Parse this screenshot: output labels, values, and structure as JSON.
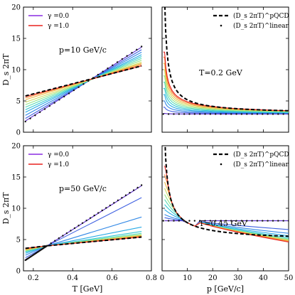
{
  "chart_data": [
    {
      "type": "line",
      "position": "top-left",
      "xlabel": "",
      "ylabel": "D_s 2πT",
      "xlim": [
        0.15,
        0.8
      ],
      "ylim": [
        0,
        20
      ],
      "xticks": [
        0.2,
        0.4,
        0.6,
        0.8
      ],
      "yticks": [
        0,
        5,
        10,
        15,
        20
      ],
      "xtick_labels": [
        "",
        "",
        "",
        ""
      ],
      "ytick_labels": [
        "0",
        "5",
        "10",
        "15",
        "20"
      ],
      "annotation": "p=10 GeV/c",
      "legend": [
        {
          "label": "γ =0.0",
          "color": "#8a2be2"
        },
        {
          "label": "γ =1.0",
          "color": "#e8221e"
        }
      ],
      "x": [
        0.16,
        0.75
      ],
      "series": [
        {
          "name": "γ =0.0",
          "gamma": 0.0,
          "values": [
            1.8,
            13.6
          ]
        },
        {
          "gamma": 0.1,
          "values": [
            2.2,
            13.2
          ]
        },
        {
          "gamma": 0.2,
          "values": [
            2.7,
            12.8
          ]
        },
        {
          "gamma": 0.3,
          "values": [
            3.2,
            12.4
          ]
        },
        {
          "gamma": 0.4,
          "values": [
            3.6,
            12.1
          ]
        },
        {
          "gamma": 0.5,
          "values": [
            4.0,
            11.8
          ]
        },
        {
          "gamma": 0.6,
          "values": [
            4.4,
            11.5
          ]
        },
        {
          "gamma": 0.7,
          "values": [
            4.8,
            11.2
          ]
        },
        {
          "gamma": 0.8,
          "values": [
            5.2,
            11.0
          ]
        },
        {
          "gamma": 0.9,
          "values": [
            5.5,
            10.8
          ]
        },
        {
          "name": "γ =1.0",
          "gamma": 1.0,
          "values": [
            5.7,
            10.6
          ]
        }
      ],
      "pQCD": {
        "x": [
          0.16,
          0.75
        ],
        "values": [
          5.8,
          10.6
        ]
      },
      "linear": {
        "x": [
          0.16,
          0.75
        ],
        "values": [
          1.7,
          13.7
        ]
      }
    },
    {
      "type": "line",
      "position": "top-right",
      "xlabel": "",
      "ylabel": "",
      "xlim": [
        0,
        50
      ],
      "ylim": [
        0,
        20
      ],
      "xticks": [
        0,
        10,
        20,
        30,
        40,
        50
      ],
      "yticks": [
        0,
        5,
        10,
        15,
        20
      ],
      "xtick_labels": [
        "",
        "",
        "",
        "",
        "",
        ""
      ],
      "ytick_labels": [
        "",
        "",
        "",
        "",
        ""
      ],
      "annotation": "T=0.2 GeV",
      "legend": [
        {
          "label": "(D_s 2πT)^pQCD",
          "style": "dashed"
        },
        {
          "label": "(D_s 2πT)^linear",
          "style": "dotted"
        }
      ],
      "p_grid": [
        1,
        1.5,
        2,
        2.5,
        3,
        4,
        5,
        6,
        8,
        10,
        12,
        15,
        20,
        25,
        30,
        35,
        40,
        45,
        50
      ],
      "pQCD_peak": 22,
      "baseline": 2.9,
      "series": [
        {
          "gamma": 0.0,
          "peak": 3.0
        },
        {
          "gamma": 0.1,
          "peak": 4.0
        },
        {
          "gamma": 0.2,
          "peak": 5.0
        },
        {
          "gamma": 0.3,
          "peak": 6.0
        },
        {
          "gamma": 0.4,
          "peak": 7.0
        },
        {
          "gamma": 0.5,
          "peak": 8.0
        },
        {
          "gamma": 0.6,
          "peak": 9.0
        },
        {
          "gamma": 0.7,
          "peak": 10.0
        },
        {
          "gamma": 0.8,
          "peak": 11.0
        },
        {
          "gamma": 0.9,
          "peak": 12.0
        },
        {
          "gamma": 1.0,
          "peak": 12.8
        }
      ]
    },
    {
      "type": "line",
      "position": "bottom-left",
      "xlabel": "T [GeV]",
      "ylabel": "D_s 2πT",
      "xlim": [
        0.15,
        0.8
      ],
      "ylim": [
        0,
        20
      ],
      "xticks": [
        0.2,
        0.4,
        0.6,
        0.8
      ],
      "yticks": [
        0,
        5,
        10,
        15,
        20
      ],
      "xtick_labels": [
        "0.2",
        "0.4",
        "0.6",
        "0.8"
      ],
      "ytick_labels": [
        "0",
        "5",
        "10",
        "15",
        "20"
      ],
      "annotation": "p=50 GeV/c",
      "legend": [
        {
          "label": "γ =0.0",
          "color": "#8a2be2"
        },
        {
          "label": "γ =1.0",
          "color": "#e8221e"
        }
      ],
      "x": [
        0.16,
        0.27,
        0.75
      ],
      "series": [
        {
          "name": "γ =0.0",
          "gamma": 0.0,
          "values": [
            1.8,
            4.0,
            13.6
          ]
        },
        {
          "gamma": 0.1,
          "values": [
            2.1,
            4.0,
            11.7
          ]
        },
        {
          "gamma": 0.2,
          "values": [
            2.5,
            4.0,
            8.6
          ]
        },
        {
          "gamma": 0.3,
          "values": [
            2.8,
            4.0,
            7.0
          ]
        },
        {
          "gamma": 0.4,
          "values": [
            3.0,
            4.0,
            6.3
          ]
        },
        {
          "gamma": 0.5,
          "values": [
            3.1,
            4.0,
            6.0
          ]
        },
        {
          "gamma": 0.6,
          "values": [
            3.2,
            4.0,
            5.8
          ]
        },
        {
          "gamma": 0.7,
          "values": [
            3.3,
            4.0,
            5.7
          ]
        },
        {
          "gamma": 0.8,
          "values": [
            3.4,
            4.0,
            5.6
          ]
        },
        {
          "gamma": 0.9,
          "values": [
            3.5,
            4.0,
            5.5
          ]
        },
        {
          "name": "γ =1.0",
          "gamma": 1.0,
          "values": [
            3.6,
            4.0,
            5.4
          ]
        }
      ],
      "pQCD": {
        "x": [
          0.16,
          0.27,
          0.75
        ],
        "values": [
          3.6,
          4.0,
          5.4
        ]
      },
      "linear": {
        "x": [
          0.16,
          0.27,
          0.75
        ],
        "values": [
          1.7,
          4.0,
          13.7
        ]
      }
    },
    {
      "type": "line",
      "position": "bottom-right",
      "xlabel": "p [GeV/c]",
      "ylabel": "",
      "xlim": [
        0,
        50
      ],
      "ylim": [
        0,
        20
      ],
      "xticks": [
        0,
        10,
        20,
        30,
        40,
        50
      ],
      "yticks": [
        0,
        5,
        10,
        15,
        20
      ],
      "xtick_labels": [
        "0",
        "10",
        "20",
        "30",
        "40",
        "50"
      ],
      "ytick_labels": [
        "",
        "",
        "",
        "",
        ""
      ],
      "annotation": "T=0.45 GeV",
      "legend": [
        {
          "label": "(D_s 2πT)^pQCD",
          "style": "dashed"
        },
        {
          "label": "(D_s 2πT)^linear",
          "style": "dotted"
        }
      ],
      "p_grid": [
        1,
        1.5,
        2,
        2.5,
        3,
        4,
        5,
        6,
        8,
        10,
        12,
        13,
        15,
        20,
        25,
        30,
        35,
        40,
        45,
        50
      ],
      "pQCD_peak": 22,
      "baseline": 8.0,
      "cross_p": 13,
      "series": [
        {
          "gamma": 0.0,
          "peak": 8.0,
          "tail": 8.0
        },
        {
          "gamma": 0.1,
          "peak": 8.5,
          "tail": 6.6
        },
        {
          "gamma": 0.2,
          "peak": 9.0,
          "tail": 6.0
        },
        {
          "gamma": 0.3,
          "peak": 9.8,
          "tail": 5.6
        },
        {
          "gamma": 0.4,
          "peak": 10.6,
          "tail": 5.3
        },
        {
          "gamma": 0.5,
          "peak": 11.4,
          "tail": 5.1
        },
        {
          "gamma": 0.6,
          "peak": 12.2,
          "tail": 5.0
        },
        {
          "gamma": 0.7,
          "peak": 13.2,
          "tail": 4.9
        },
        {
          "gamma": 0.8,
          "peak": 14.2,
          "tail": 4.8
        },
        {
          "gamma": 0.9,
          "peak": 15.4,
          "tail": 4.7
        },
        {
          "gamma": 1.0,
          "peak": 16.8,
          "tail": 4.6
        }
      ]
    }
  ]
}
